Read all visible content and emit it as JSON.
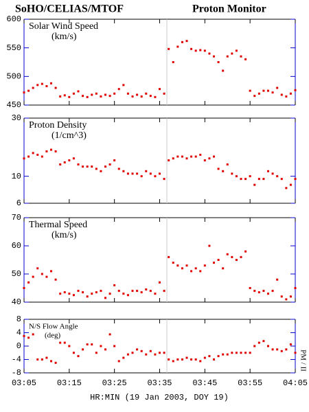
{
  "header": {
    "left": "SoHO/CELIAS/MTOF",
    "right": "Proton Monitor"
  },
  "xlabel": "HR:MIN (19 Jan 2003, DOY 19)",
  "side_label": "PM / II",
  "chart_data": [
    {
      "type": "scatter",
      "title": "Solar Wind Speed",
      "unit": "(km/s)",
      "color": "#e00000",
      "log": false,
      "vline_x": 36.6,
      "x": [
        5,
        6,
        7,
        8,
        9,
        10,
        11,
        12,
        13,
        14,
        15,
        16,
        17,
        18,
        19,
        20,
        21,
        22,
        23,
        24,
        25,
        26,
        27,
        28,
        29,
        30,
        31,
        32,
        33,
        34,
        35,
        36,
        37,
        38,
        39,
        40,
        41,
        42,
        43,
        44,
        45,
        46,
        47,
        48,
        49,
        50,
        51,
        52,
        53,
        54,
        55,
        56,
        57,
        58,
        59,
        60,
        61,
        62,
        63,
        64,
        65
      ],
      "values": [
        472,
        475,
        480,
        485,
        487,
        483,
        488,
        480,
        465,
        467,
        464,
        470,
        474,
        466,
        464,
        468,
        470,
        465,
        468,
        466,
        470,
        478,
        485,
        470,
        465,
        468,
        465,
        470,
        466,
        464,
        478,
        470,
        548,
        525,
        552,
        560,
        562,
        548,
        545,
        546,
        545,
        540,
        535,
        525,
        510,
        535,
        540,
        545,
        535,
        530,
        475,
        466,
        470,
        475,
        475,
        472,
        480,
        468,
        465,
        470,
        476
      ],
      "xlim": [
        5,
        65
      ],
      "xticks": [
        {
          "value": 5,
          "label": "03:05"
        },
        {
          "value": 15,
          "label": "03:15"
        },
        {
          "value": 25,
          "label": "03:25"
        },
        {
          "value": 35,
          "label": "03:35"
        },
        {
          "value": 45,
          "label": "03:45"
        },
        {
          "value": 55,
          "label": "03:55"
        },
        {
          "value": 65,
          "label": "04:05"
        }
      ],
      "ylim": [
        450,
        600
      ],
      "yticks": [
        450,
        500,
        550,
        600
      ]
    },
    {
      "type": "scatter",
      "title": "Proton Density",
      "unit": "(1/cm^3)",
      "color": "#e00000",
      "log": true,
      "vline_x": 36.6,
      "x": [
        5,
        6,
        7,
        8,
        9,
        10,
        11,
        12,
        13,
        14,
        15,
        16,
        17,
        18,
        19,
        20,
        21,
        22,
        23,
        24,
        25,
        26,
        27,
        28,
        29,
        30,
        31,
        32,
        33,
        34,
        35,
        36,
        37,
        38,
        39,
        40,
        41,
        42,
        43,
        44,
        45,
        46,
        47,
        48,
        49,
        50,
        51,
        52,
        53,
        54,
        55,
        56,
        57,
        58,
        59,
        60,
        61,
        62,
        63,
        64,
        65
      ],
      "values": [
        14,
        14.5,
        15.5,
        15,
        14.5,
        16,
        16.5,
        16,
        12.5,
        13,
        13.5,
        14,
        12.5,
        12,
        12,
        12,
        11.5,
        11,
        12,
        12.5,
        13.5,
        11.5,
        11,
        10.5,
        10.5,
        10.5,
        10,
        11,
        10.5,
        10,
        10.5,
        9.5,
        13.5,
        14,
        14.5,
        14.5,
        14,
        14.5,
        14.5,
        15,
        13.5,
        14,
        14.5,
        11.5,
        11,
        12.5,
        10.5,
        10,
        9.5,
        9.5,
        10,
        8.5,
        9.5,
        9.5,
        11,
        10.5,
        10,
        9.5,
        8,
        8.5,
        9.5
      ],
      "xlim": [
        5,
        65
      ],
      "xticks": [
        {
          "value": 5,
          "label": "03:05"
        },
        {
          "value": 15,
          "label": "03:15"
        },
        {
          "value": 25,
          "label": "03:25"
        },
        {
          "value": 35,
          "label": "03:35"
        },
        {
          "value": 45,
          "label": "03:45"
        },
        {
          "value": 55,
          "label": "03:55"
        },
        {
          "value": 65,
          "label": "04:05"
        }
      ],
      "ylim": [
        6,
        30
      ],
      "yticks": [
        6,
        10,
        30
      ]
    },
    {
      "type": "scatter",
      "title": "Thermal Speed",
      "unit": "(km/s)",
      "color": "#e00000",
      "log": false,
      "vline_x": 36.6,
      "x": [
        5,
        6,
        7,
        8,
        9,
        10,
        11,
        12,
        13,
        14,
        15,
        16,
        17,
        18,
        19,
        20,
        21,
        22,
        23,
        24,
        25,
        26,
        27,
        28,
        29,
        30,
        31,
        32,
        33,
        34,
        35,
        36,
        37,
        38,
        39,
        40,
        41,
        42,
        43,
        44,
        45,
        46,
        47,
        48,
        49,
        50,
        51,
        52,
        53,
        54,
        55,
        56,
        57,
        58,
        59,
        60,
        61,
        62,
        63,
        64,
        65
      ],
      "values": [
        45,
        47,
        49,
        52,
        50,
        49,
        51,
        48,
        43,
        43.5,
        43,
        42.5,
        44,
        43.5,
        42,
        43,
        43.5,
        44,
        41.5,
        43,
        46,
        44,
        43,
        42.5,
        44,
        44,
        43.5,
        44.5,
        44,
        43,
        47,
        44,
        56,
        54,
        53,
        52,
        53,
        51,
        52,
        51,
        53,
        60,
        54,
        55,
        52,
        57,
        56,
        55,
        56,
        58,
        45,
        44,
        43.5,
        44,
        43,
        44,
        48,
        42,
        41,
        42,
        45
      ],
      "xlim": [
        5,
        65
      ],
      "xticks": [
        {
          "value": 5,
          "label": "03:05"
        },
        {
          "value": 15,
          "label": "03:15"
        },
        {
          "value": 25,
          "label": "03:25"
        },
        {
          "value": 35,
          "label": "03:35"
        },
        {
          "value": 45,
          "label": "03:45"
        },
        {
          "value": 55,
          "label": "03:55"
        },
        {
          "value": 65,
          "label": "04:05"
        }
      ],
      "ylim": [
        40,
        70
      ],
      "yticks": [
        40,
        50,
        60,
        70
      ]
    },
    {
      "type": "scatter",
      "title": "N/S Flow Angle",
      "unit": "(deg)",
      "color": "#e00000",
      "log": false,
      "vline_x": 36.6,
      "x": [
        5,
        6,
        7,
        8,
        9,
        10,
        11,
        12,
        13,
        14,
        15,
        16,
        17,
        18,
        19,
        20,
        21,
        22,
        23,
        24,
        25,
        26,
        27,
        28,
        29,
        30,
        31,
        32,
        33,
        34,
        35,
        36,
        37,
        38,
        39,
        40,
        41,
        42,
        43,
        44,
        45,
        46,
        47,
        48,
        49,
        50,
        51,
        52,
        53,
        54,
        55,
        56,
        57,
        58,
        59,
        60,
        61,
        62,
        63,
        64,
        65
      ],
      "values": [
        3,
        2.5,
        3.5,
        -4,
        -4,
        -3.5,
        -4.5,
        -5,
        1,
        1,
        0,
        -2,
        -3,
        -1,
        0.5,
        0.5,
        -2,
        0,
        -1,
        3.5,
        0,
        -4.5,
        -3.5,
        -2.5,
        -2,
        -1,
        -1.5,
        -2.5,
        -1.5,
        -2.5,
        -2,
        -2,
        -4,
        -4.5,
        -4,
        -4,
        -3.5,
        -4,
        -4,
        -4.5,
        -3.5,
        -3,
        -4,
        -3,
        -2.5,
        -2.5,
        -2,
        -2,
        -2,
        -2,
        -2,
        0,
        1,
        1.5,
        0,
        -1,
        -1,
        -1.5,
        -1,
        0.5,
        -2
      ],
      "xlim": [
        5,
        65
      ],
      "xticks": [
        {
          "value": 5,
          "label": "03:05"
        },
        {
          "value": 15,
          "label": "03:15"
        },
        {
          "value": 25,
          "label": "03:25"
        },
        {
          "value": 35,
          "label": "03:35"
        },
        {
          "value": 45,
          "label": "03:45"
        },
        {
          "value": 55,
          "label": "03:55"
        },
        {
          "value": 65,
          "label": "04:05"
        }
      ],
      "ylim": [
        -8,
        8
      ],
      "yticks": [
        -8,
        -4,
        0,
        4,
        8
      ]
    }
  ]
}
